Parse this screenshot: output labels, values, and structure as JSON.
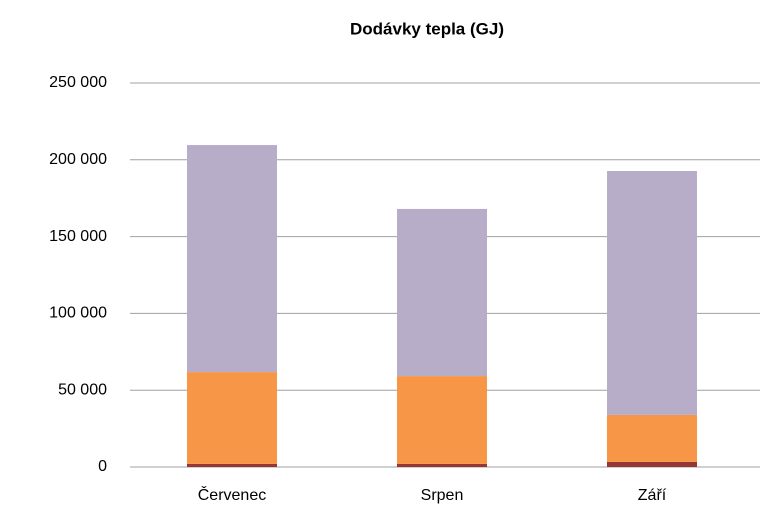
{
  "chart_data": {
    "type": "stacked_bar",
    "title": "Dodávky tepla (GJ)",
    "categories": [
      "Červenec",
      "Srpen",
      "Září"
    ],
    "series": [
      {
        "color": "#953735",
        "values": [
          2000,
          2000,
          3300
        ]
      },
      {
        "color": "#f79646",
        "values": [
          59800,
          57200,
          30600
        ]
      },
      {
        "color": "#b7adc9",
        "values": [
          147800,
          108800,
          158800
        ]
      }
    ],
    "ylim": [
      0,
      250000
    ],
    "yticks": [
      0,
      {
        "value": 50000,
        "label": "50 000"
      },
      {
        "value": 100000,
        "label": "100 000"
      },
      {
        "value": 150000,
        "label": "150 000"
      },
      {
        "value": 200000,
        "label": "200 000"
      },
      {
        "value": 250000,
        "label": "250 000"
      }
    ],
    "grid": true
  }
}
